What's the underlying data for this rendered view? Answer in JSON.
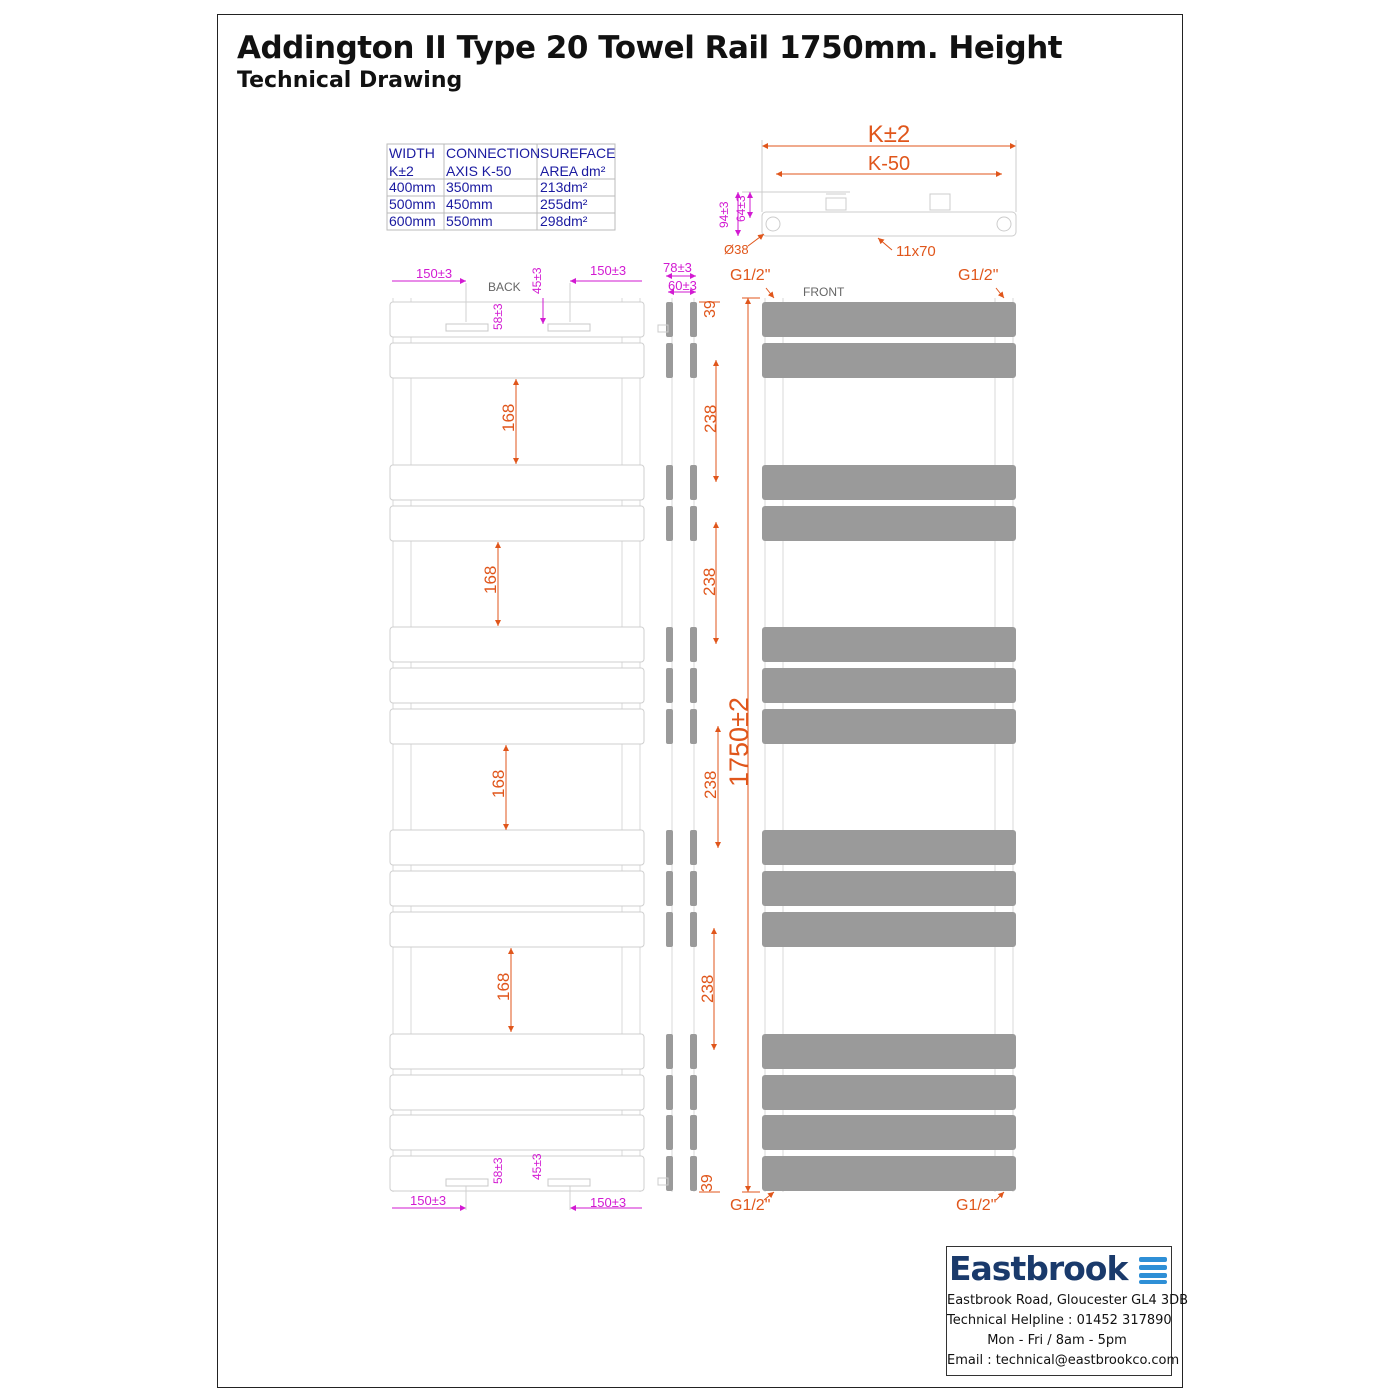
{
  "header": {
    "title": "Addington II Type 20 Towel Rail 1750mm. Height",
    "subtitle": "Technical Drawing"
  },
  "spec_table": {
    "headers": [
      [
        "WIDTH",
        "K±2"
      ],
      [
        "CONNECTION",
        "AXIS K-50"
      ],
      [
        "SUREFACE",
        "AREA dm²"
      ]
    ],
    "rows": [
      [
        "400mm",
        "350mm",
        "213dm²"
      ],
      [
        "500mm",
        "450mm",
        "255dm²"
      ],
      [
        "600mm",
        "550mm",
        "298dm²"
      ]
    ]
  },
  "top_view": {
    "width_dim": "K±2",
    "axis_dim": "K-50",
    "depth_94": "94±3",
    "depth_64": "64±3",
    "pipe_dia": "Ø38",
    "bar_size": "11x70"
  },
  "back_view": {
    "label": "BACK",
    "bracket_offset_top_left": "150±3",
    "bracket_offset_top_right": "150±3",
    "bracket_offset_bottom_left": "150±3",
    "bracket_offset_bottom_right": "150±3",
    "bracket_vertical_top": "45±3",
    "bracket_vertical_bottom": "45±3",
    "bracket_height_top": "58±3",
    "bracket_height_bottom": "58±3",
    "gap_dims": [
      "168",
      "168",
      "168",
      "168"
    ]
  },
  "side_view": {
    "depth_outer": "78±3",
    "depth_inner": "60±3",
    "end_dim_top": "39",
    "end_dim_bottom": "39",
    "gap_dims": [
      "238",
      "238",
      "238",
      "238"
    ]
  },
  "front_view": {
    "label": "FRONT",
    "height_dim": "1750±2",
    "connections": [
      "G1/2\"",
      "G1/2\"",
      "G1/2\"",
      "G1/2\""
    ]
  },
  "footer": {
    "brand": "Eastbrook",
    "address": "Eastbrook Road, Gloucester GL4 3DB",
    "helpline": "Technical Helpline : 01452 317890",
    "hours": "Mon - Fri / 8am - 5pm",
    "email": "Email : technical@eastbrookco.com"
  },
  "colors": {
    "table_text": "#1a1aa0",
    "dim_orange": "#e0561b",
    "dim_magenta": "#d21ad2",
    "bar_grey": "#9a9a9a",
    "brand_blue": "#1a3a6b",
    "brand_accent": "#2e8fd6"
  }
}
